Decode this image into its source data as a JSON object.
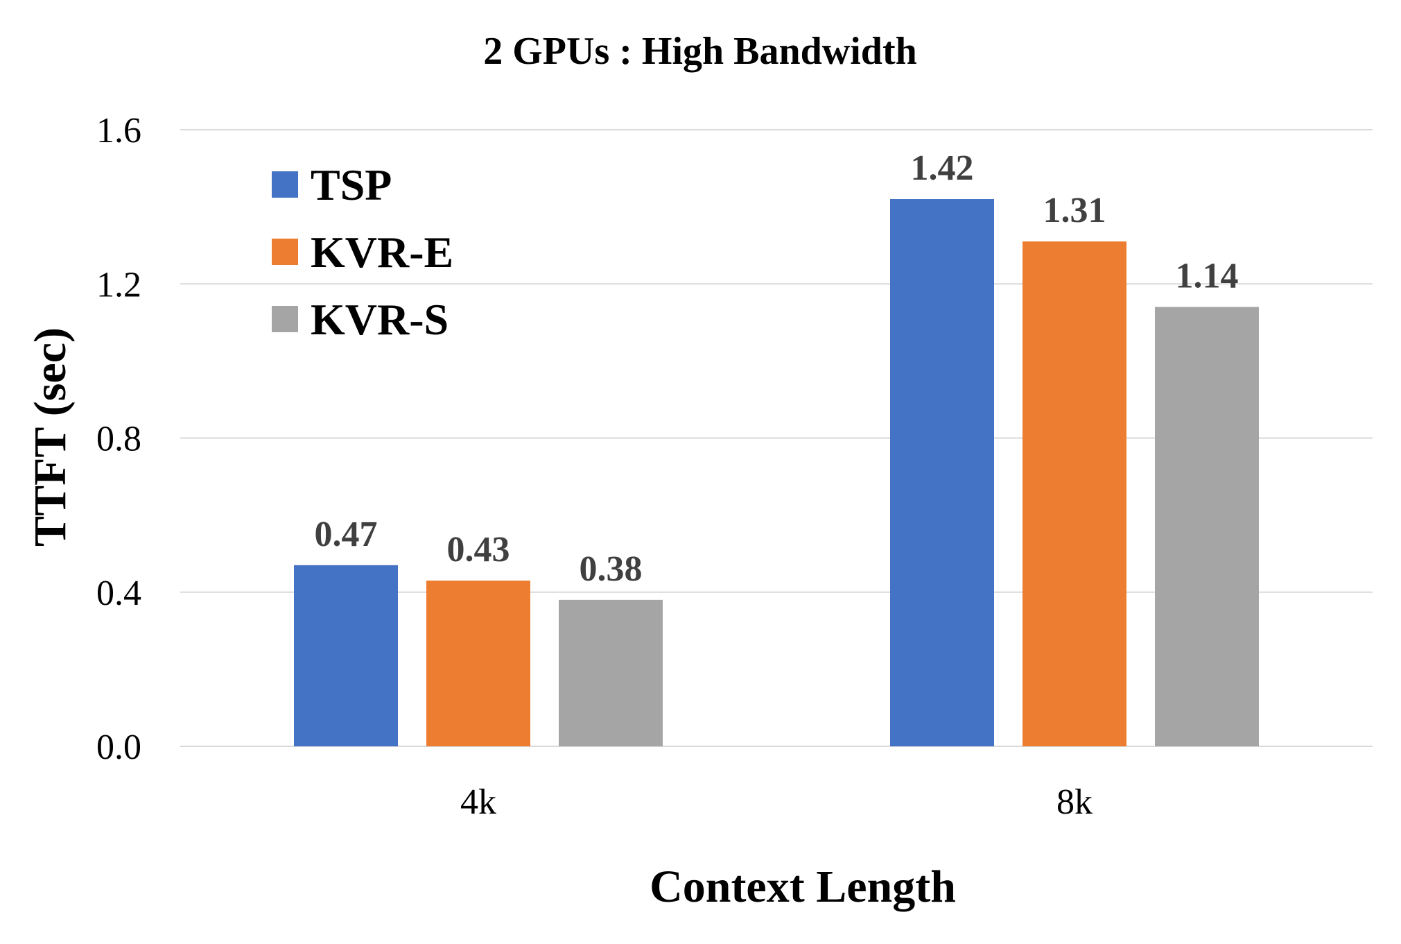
{
  "chart_data": {
    "type": "bar",
    "title": "2 GPUs : High Bandwidth",
    "xlabel": "Context Length",
    "ylabel": "TTFT (sec)",
    "categories": [
      "4k",
      "8k"
    ],
    "series": [
      {
        "name": "TSP",
        "color": "#4472c4",
        "values": [
          0.47,
          1.42
        ],
        "labels": [
          "0.47",
          "1.42"
        ]
      },
      {
        "name": "KVR-E",
        "color": "#ed7d31",
        "values": [
          0.43,
          1.31
        ],
        "labels": [
          "0.43",
          "1.31"
        ]
      },
      {
        "name": "KVR-S",
        "color": "#a5a5a5",
        "values": [
          0.38,
          1.14
        ],
        "labels": [
          "0.38",
          "1.14"
        ]
      }
    ],
    "ylim": [
      0,
      1.6
    ],
    "yticks": [
      0.0,
      0.4,
      0.8,
      1.2,
      1.6
    ],
    "ytick_labels": [
      "0.0",
      "0.4",
      "0.8",
      "1.2",
      "1.6"
    ],
    "grid": true,
    "legend_position": "top-left"
  }
}
